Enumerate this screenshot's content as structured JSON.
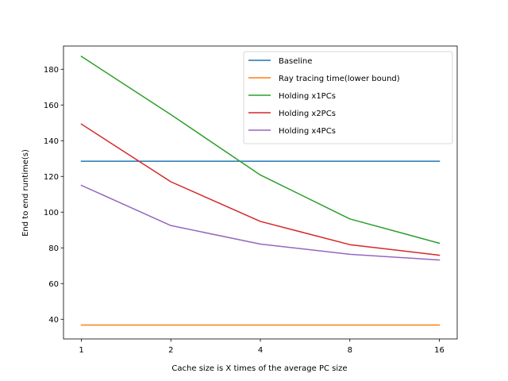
{
  "chart_data": {
    "type": "line",
    "title": "",
    "xlabel": "Cache size is X times of the average PC size",
    "ylabel": "End to end runtime(s)",
    "x": [
      "1",
      "2",
      "4",
      "8",
      "16"
    ],
    "x_scale": "log2",
    "ylim": [
      29,
      193
    ],
    "yticks": [
      40,
      60,
      80,
      100,
      120,
      140,
      160,
      180
    ],
    "grid": false,
    "legend_position": "top-right",
    "series": [
      {
        "name": "Baseline",
        "color": "#1f77b4",
        "values": [
          128.5,
          128.5,
          128.5,
          128.5,
          128.5
        ]
      },
      {
        "name": "Ray tracing time(lower bound)",
        "color": "#ff7f0e",
        "values": [
          36.8,
          36.8,
          36.8,
          36.8,
          36.8
        ]
      },
      {
        "name": "Holding x1PCs",
        "color": "#2ca02c",
        "values": [
          187.2,
          154.6,
          120.8,
          96.2,
          82.6
        ]
      },
      {
        "name": "Holding x2PCs",
        "color": "#d62728",
        "values": [
          149.3,
          117.0,
          94.8,
          81.8,
          75.9
        ]
      },
      {
        "name": "Holding x4PCs",
        "color": "#9467bd",
        "values": [
          115.0,
          92.5,
          82.1,
          76.4,
          73.2
        ]
      }
    ]
  }
}
